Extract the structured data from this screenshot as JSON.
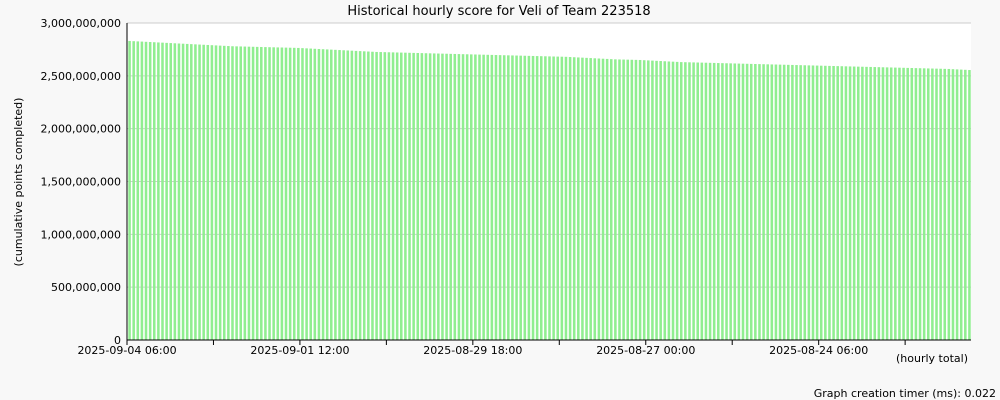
{
  "chart_data": {
    "type": "bar",
    "title": "Historical hourly score for Veli of Team 223518",
    "ylabel": "(cumulative points completed)",
    "xlabel": "(hourly total)",
    "ylim": [
      0,
      3000000000
    ],
    "y_ticks": [
      {
        "value": 0,
        "label": "0"
      },
      {
        "value": 500000000,
        "label": "500,000,000"
      },
      {
        "value": 1000000000,
        "label": "1,000,000,000"
      },
      {
        "value": 1500000000,
        "label": "1,500,000,000"
      },
      {
        "value": 2000000000,
        "label": "2,000,000,000"
      },
      {
        "value": 2500000000,
        "label": "2,500,000,000"
      },
      {
        "value": 3000000000,
        "label": "3,000,000,000"
      }
    ],
    "x_tick_labels": [
      {
        "index": 0,
        "label": "2025-09-04 06:00"
      },
      {
        "index": 42,
        "label": "2025-09-01 12:00"
      },
      {
        "index": 84,
        "label": "2025-08-29 18:00"
      },
      {
        "index": 126,
        "label": "2025-08-27 00:00"
      },
      {
        "index": 168,
        "label": "2025-08-24 06:00"
      }
    ],
    "bar_color": "#90ee90",
    "grid": true,
    "values": [
      2830000000,
      2828000000,
      2826000000,
      2824000000,
      2822000000,
      2820000000,
      2818000000,
      2816000000,
      2814000000,
      2812000000,
      2810000000,
      2808000000,
      2806000000,
      2804000000,
      2802000000,
      2800000000,
      2798000000,
      2796000000,
      2794000000,
      2792000000,
      2790000000,
      2788000000,
      2786000000,
      2784000000,
      2782000000,
      2780000000,
      2779000000,
      2778000000,
      2777000000,
      2776000000,
      2775000000,
      2774000000,
      2773000000,
      2772000000,
      2771000000,
      2770000000,
      2769000000,
      2768000000,
      2767000000,
      2766000000,
      2765000000,
      2764000000,
      2762000000,
      2760000000,
      2758000000,
      2756000000,
      2754000000,
      2752000000,
      2750000000,
      2748000000,
      2746000000,
      2744000000,
      2742000000,
      2740000000,
      2738000000,
      2736000000,
      2734000000,
      2732000000,
      2730000000,
      2728000000,
      2726000000,
      2725000000,
      2724000000,
      2723000000,
      2722000000,
      2721000000,
      2720000000,
      2719000000,
      2718000000,
      2717000000,
      2716000000,
      2715000000,
      2714000000,
      2713000000,
      2712000000,
      2711000000,
      2710000000,
      2709000000,
      2708000000,
      2707000000,
      2706000000,
      2705000000,
      2704000000,
      2703000000,
      2702000000,
      2701000000,
      2700000000,
      2699000000,
      2698000000,
      2697000000,
      2696000000,
      2695000000,
      2694000000,
      2693000000,
      2692000000,
      2691000000,
      2690000000,
      2689000000,
      2688000000,
      2687000000,
      2686000000,
      2685000000,
      2684000000,
      2683000000,
      2682000000,
      2681000000,
      2680000000,
      2678000000,
      2676000000,
      2674000000,
      2672000000,
      2670000000,
      2668000000,
      2666000000,
      2664000000,
      2662000000,
      2660000000,
      2658000000,
      2656000000,
      2655000000,
      2654000000,
      2653000000,
      2652000000,
      2651000000,
      2650000000,
      2648000000,
      2646000000,
      2644000000,
      2642000000,
      2640000000,
      2638000000,
      2636000000,
      2634000000,
      2632000000,
      2630000000,
      2629000000,
      2628000000,
      2627000000,
      2626000000,
      2625000000,
      2624000000,
      2623000000,
      2622000000,
      2621000000,
      2620000000,
      2619000000,
      2618000000,
      2617000000,
      2616000000,
      2615000000,
      2614000000,
      2613000000,
      2612000000,
      2611000000,
      2610000000,
      2609000000,
      2608000000,
      2607000000,
      2606000000,
      2605000000,
      2604000000,
      2603000000,
      2602000000,
      2601000000,
      2600000000,
      2599000000,
      2598000000,
      2597000000,
      2596000000,
      2595000000,
      2594000000,
      2593000000,
      2592000000,
      2591000000,
      2590000000,
      2589000000,
      2588000000,
      2587000000,
      2586000000,
      2585000000,
      2584000000,
      2583000000,
      2582000000,
      2581000000,
      2580000000,
      2579000000,
      2578000000,
      2577000000,
      2576000000,
      2575000000,
      2574000000,
      2573000000,
      2572000000,
      2571000000,
      2570000000,
      2569000000,
      2568000000,
      2567000000,
      2566000000,
      2565000000,
      2563000000,
      2561000000,
      2559000000,
      2557000000,
      2555000000
    ]
  },
  "footer": {
    "timer_label": "Graph creation timer (ms): 0.022"
  }
}
